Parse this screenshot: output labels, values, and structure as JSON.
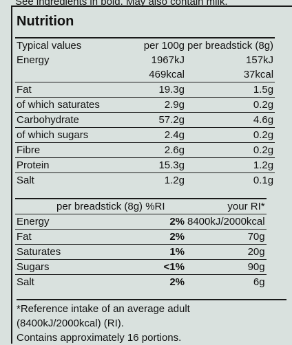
{
  "top_text": "See ingredients in bold. May also contain milk.",
  "title": "Nutrition",
  "header": {
    "label": "Typical values",
    "col1": "per 100g",
    "col2": "per breadstick (8g)"
  },
  "energy": {
    "label": "Energy",
    "kj_100": "1967kJ",
    "kj_stick": "157kJ",
    "kcal_100": "469kcal",
    "kcal_stick": "37kcal"
  },
  "rows": [
    {
      "label": "Fat",
      "per100": "19.3g",
      "perstick": "1.5g"
    },
    {
      "label": "of which saturates",
      "per100": "2.9g",
      "perstick": "0.2g"
    },
    {
      "label": "Carbohydrate",
      "per100": "57.2g",
      "perstick": "4.6g"
    },
    {
      "label": "of which sugars",
      "per100": "2.4g",
      "perstick": "0.2g"
    },
    {
      "label": "Fibre",
      "per100": "2.6g",
      "perstick": "0.2g"
    },
    {
      "label": "Protein",
      "per100": "15.3g",
      "perstick": "1.2g"
    },
    {
      "label": "Salt",
      "per100": "1.2g",
      "perstick": "0.1g"
    }
  ],
  "ri_header": {
    "left": "per breadstick (8g) %RI",
    "right": "your RI*"
  },
  "ri_rows": [
    {
      "label": "Energy",
      "pct": "2%",
      "ri": "8400kJ/2000kcal"
    },
    {
      "label": "Fat",
      "pct": "2%",
      "ri": "70g"
    },
    {
      "label": "Saturates",
      "pct": "1%",
      "ri": "20g"
    },
    {
      "label": "Sugars",
      "pct": "<1%",
      "ri": "90g"
    },
    {
      "label": "Salt",
      "pct": "2%",
      "ri": "6g"
    }
  ],
  "footnote_line1": "*Reference intake of an average adult",
  "footnote_line2": "(8400kJ/2000kcal) (RI).",
  "portions": "Contains approximately 16 portions."
}
